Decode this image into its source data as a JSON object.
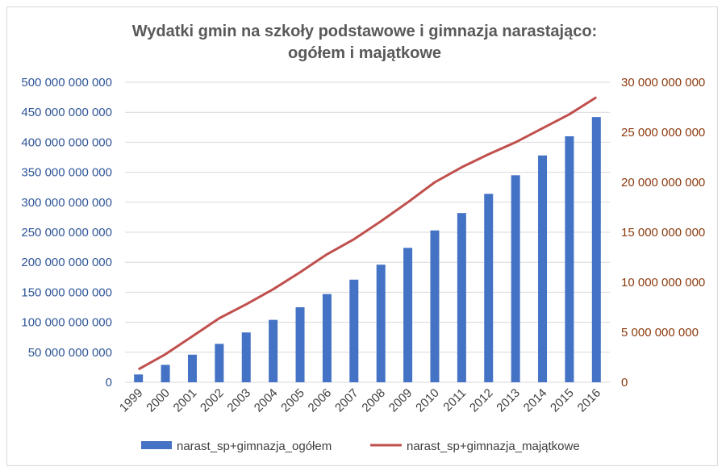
{
  "chart_data": {
    "type": "bar",
    "title": "Wydatki gmin na szkoły podstawowe i gimnazja narastająco:",
    "subtitle": "ogółem i majątkowe",
    "xlabel": "",
    "ylabel": "",
    "categories": [
      "1999",
      "2000",
      "2001",
      "2002",
      "2003",
      "2004",
      "2005",
      "2006",
      "2007",
      "2008",
      "2009",
      "2010",
      "2011",
      "2012",
      "2013",
      "2014",
      "2015",
      "2016"
    ],
    "ylim": [
      0,
      500000000000
    ],
    "y2lim": [
      0,
      30000000000
    ],
    "yticks": [
      "0",
      "50 000 000 000",
      "100 000 000 000",
      "150 000 000 000",
      "200 000 000 000",
      "250 000 000 000",
      "300 000 000 000",
      "350 000 000 000",
      "400 000 000 000",
      "450 000 000 000",
      "500 000 000 000"
    ],
    "y2ticks": [
      "0",
      "5 000 000 000",
      "10 000 000 000",
      "15 000 000 000",
      "20 000 000 000",
      "25 000 000 000",
      "30 000 000 000"
    ],
    "grid": true,
    "legend_position": "bottom",
    "series": [
      {
        "name": "narast_sp+gimnazja_ogółem",
        "type": "bar",
        "axis": "left",
        "color": "#4472c4",
        "values": [
          13000000000,
          29000000000,
          46000000000,
          64000000000,
          83000000000,
          104000000000,
          125000000000,
          147000000000,
          171000000000,
          196000000000,
          224000000000,
          253000000000,
          282000000000,
          314000000000,
          345000000000,
          378000000000,
          410000000000,
          442000000000
        ]
      },
      {
        "name": "narast_sp+gimnazja_majątkowe",
        "type": "line",
        "axis": "right",
        "color": "#c0504d",
        "values": [
          1300000000,
          2800000000,
          4600000000,
          6400000000,
          7800000000,
          9300000000,
          11000000000,
          12800000000,
          14300000000,
          16100000000,
          18000000000,
          20000000000,
          21500000000,
          22800000000,
          24000000000,
          25400000000,
          26800000000,
          28500000000
        ]
      }
    ]
  }
}
